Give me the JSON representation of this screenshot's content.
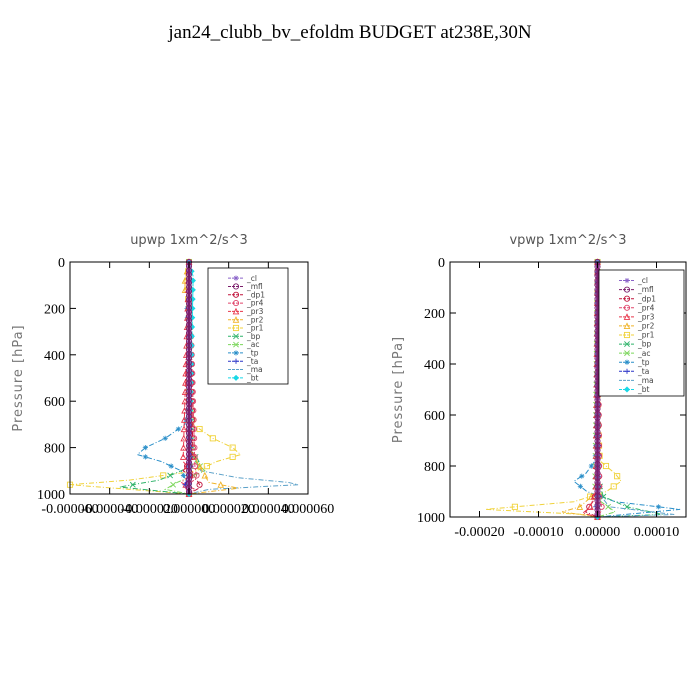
{
  "title": "jan24_clubb_bv_efoldm  BUDGET at238E,30N",
  "colors": {
    "_cl": "#8a63c9",
    "_mfl": "#7b1e6b",
    "_dp1": "#c0143c",
    "_pr4": "#e0456a",
    "_pr3": "#e8364b",
    "_pr2": "#f0b429",
    "_pr1": "#f0d23a",
    "_bp": "#2fb36a",
    "_ac": "#7bd65b",
    "_tp": "#2a8fc9",
    "_ta": "#2c35c8",
    "_ma": "#5aa0c8",
    "_bt": "#18d8e6"
  },
  "chart_data": [
    {
      "type": "line",
      "title": "upwp   1xm^2/s^3",
      "ylabel": "Pressure [hPa]",
      "xlim": [
        -6e-05,
        6e-05
      ],
      "ylim": [
        1000,
        0
      ],
      "y_inverted": true,
      "grid": false,
      "legend_position": "top-right",
      "xticks": [
        -6e-05,
        -4e-05,
        -2e-05,
        0.0,
        2e-05,
        4e-05,
        6e-05
      ],
      "xtick_labels": [
        "-0.000060",
        "-0.000040",
        "-0.000020",
        "0.000000",
        "0.000020",
        "0.000040",
        "0.000060"
      ],
      "yticks": [
        0,
        200,
        400,
        600,
        800,
        1000
      ],
      "legend": [
        "_cl",
        "_mfl",
        "_dp1",
        "_pr4",
        "_pr3",
        "_pr2",
        "_pr1",
        "_bp",
        "_ac",
        "_tp",
        "_ta",
        "_ma",
        "_bt"
      ],
      "series": [
        {
          "name": "_tp",
          "y": [
            0,
            100,
            200,
            400,
            600,
            700,
            760,
            800,
            830,
            860,
            900,
            950,
            1000
          ],
          "x": [
            0,
            1e-06,
            -1e-06,
            0,
            0,
            -2e-06,
            -1.2e-05,
            -2.2e-05,
            -2.6e-05,
            -1.4e-05,
            -4e-06,
            -1e-06,
            0
          ]
        },
        {
          "name": "_pr1",
          "y": [
            0,
            100,
            200,
            400,
            600,
            700,
            760,
            800,
            830,
            860,
            900,
            940,
            960,
            1000
          ],
          "x": [
            0,
            -1e-06,
            0,
            0,
            0,
            2e-06,
            1.2e-05,
            2.2e-05,
            2.6e-05,
            1.4e-05,
            4e-06,
            -3e-05,
            -6e-05,
            0
          ]
        },
        {
          "name": "_ma",
          "y": [
            0,
            400,
            800,
            900,
            930,
            950,
            960,
            980,
            1000
          ],
          "x": [
            0,
            0,
            0,
            6e-06,
            2.5e-05,
            5e-05,
            5.5e-05,
            1e-05,
            0
          ]
        },
        {
          "name": "_bp",
          "y": [
            0,
            800,
            860,
            900,
            940,
            970,
            1000
          ],
          "x": [
            0,
            0,
            5e-06,
            -4e-06,
            -1.5e-05,
            -3.5e-05,
            0
          ]
        },
        {
          "name": "_ac",
          "y": [
            0,
            850,
            900,
            950,
            980,
            1000
          ],
          "x": [
            0,
            2e-06,
            8e-06,
            -6e-06,
            -1.2e-05,
            0
          ]
        },
        {
          "name": "_pr2",
          "y": [
            0,
            80,
            120,
            150,
            800,
            950,
            975,
            1000
          ],
          "x": [
            0,
            -2e-06,
            -2e-06,
            0,
            0,
            1e-05,
            2.5e-05,
            0
          ]
        },
        {
          "name": "_dp1",
          "y": [
            0,
            850,
            900,
            940,
            970,
            1000
          ],
          "x": [
            0,
            2e-06,
            -3e-06,
            4e-06,
            6e-06,
            0
          ]
        },
        {
          "name": "_pr3",
          "y": [
            0,
            860,
            910,
            950,
            980,
            1000
          ],
          "x": [
            0,
            -3e-06,
            2e-06,
            -4e-06,
            3e-06,
            0
          ]
        },
        {
          "name": "_pr4",
          "y": [
            0,
            880,
            930,
            970,
            1000
          ],
          "x": [
            0,
            3e-06,
            4e-06,
            -2e-06,
            0
          ]
        },
        {
          "name": "_ta",
          "y": [
            0,
            900,
            960,
            1000
          ],
          "x": [
            0,
            1e-06,
            -2e-06,
            0
          ]
        },
        {
          "name": "_bt",
          "y": [
            0,
            60,
            100,
            900,
            1000
          ],
          "x": [
            0,
            2e-06,
            2e-06,
            0,
            0
          ]
        },
        {
          "name": "_cl",
          "y": [
            0,
            1000
          ],
          "x": [
            0,
            0
          ]
        },
        {
          "name": "_mfl",
          "y": [
            0,
            1000
          ],
          "x": [
            0,
            0
          ]
        }
      ]
    },
    {
      "type": "line",
      "title": "vpwp   1xm^2/s^3",
      "ylabel": "Pressure [hPa]",
      "xlim": [
        -0.00025,
        0.00015
      ],
      "ylim": [
        1000,
        0
      ],
      "y_inverted": true,
      "grid": false,
      "legend_position": "top-right",
      "xticks": [
        -0.0002,
        -0.0001,
        0.0,
        0.0001
      ],
      "xtick_labels": [
        "-0.00020",
        "-0.00010",
        "0.00000",
        "0.00010"
      ],
      "yticks": [
        0,
        200,
        400,
        600,
        800,
        1000
      ],
      "legend": [
        "_cl",
        "_mfl",
        "_dp1",
        "_pr4",
        "_pr3",
        "_pr2",
        "_pr1",
        "_bp",
        "_ac",
        "_tp",
        "_ta",
        "_ma",
        "_bt"
      ],
      "series": [
        {
          "name": "_tp",
          "y": [
            0,
            400,
            600,
            780,
            830,
            860,
            900,
            940,
            970,
            1000
          ],
          "x": [
            0,
            0,
            0,
            -4e-06,
            -2e-05,
            -4e-05,
            -1.8e-05,
            3e-05,
            0.00014,
            0
          ]
        },
        {
          "name": "_pr1",
          "y": [
            0,
            400,
            600,
            780,
            830,
            860,
            900,
            940,
            970,
            990,
            1000
          ],
          "x": [
            0,
            0,
            0,
            4e-06,
            3e-05,
            4e-05,
            1.5e-05,
            -4e-05,
            -0.00019,
            -2e-05,
            0
          ]
        },
        {
          "name": "_pr2",
          "y": [
            0,
            900,
            960,
            980,
            1000
          ],
          "x": [
            0,
            0,
            -3e-05,
            -6e-05,
            0
          ]
        },
        {
          "name": "_bp",
          "y": [
            0,
            850,
            920,
            960,
            990,
            1000
          ],
          "x": [
            0,
            0,
            1e-05,
            5e-05,
            0.00011,
            0
          ]
        },
        {
          "name": "_ac",
          "y": [
            0,
            880,
            940,
            980,
            1000
          ],
          "x": [
            0,
            -4e-06,
            6e-06,
            3e-05,
            0
          ]
        },
        {
          "name": "_ma",
          "y": [
            0,
            900,
            960,
            990,
            1000
          ],
          "x": [
            0,
            0,
            2e-05,
            0.00013,
            0
          ]
        },
        {
          "name": "_dp1",
          "y": [
            0,
            880,
            940,
            980,
            1000
          ],
          "x": [
            0,
            3e-06,
            -8e-06,
            -2e-05,
            0
          ]
        },
        {
          "name": "_pr3",
          "y": [
            0,
            900,
            960,
            985,
            1000
          ],
          "x": [
            0,
            -3e-06,
            -1.2e-05,
            -2.5e-05,
            0
          ]
        },
        {
          "name": "_pr4",
          "y": [
            0,
            920,
            970,
            1000
          ],
          "x": [
            0,
            3e-06,
            8e-06,
            0
          ]
        },
        {
          "name": "_ta",
          "y": [
            0,
            920,
            970,
            1000
          ],
          "x": [
            0,
            2e-06,
            -4e-06,
            0
          ]
        },
        {
          "name": "_bt",
          "y": [
            0,
            1000
          ],
          "x": [
            0,
            0
          ]
        },
        {
          "name": "_cl",
          "y": [
            0,
            1000
          ],
          "x": [
            0,
            0
          ]
        },
        {
          "name": "_mfl",
          "y": [
            0,
            1000
          ],
          "x": [
            0,
            0
          ]
        }
      ]
    }
  ]
}
